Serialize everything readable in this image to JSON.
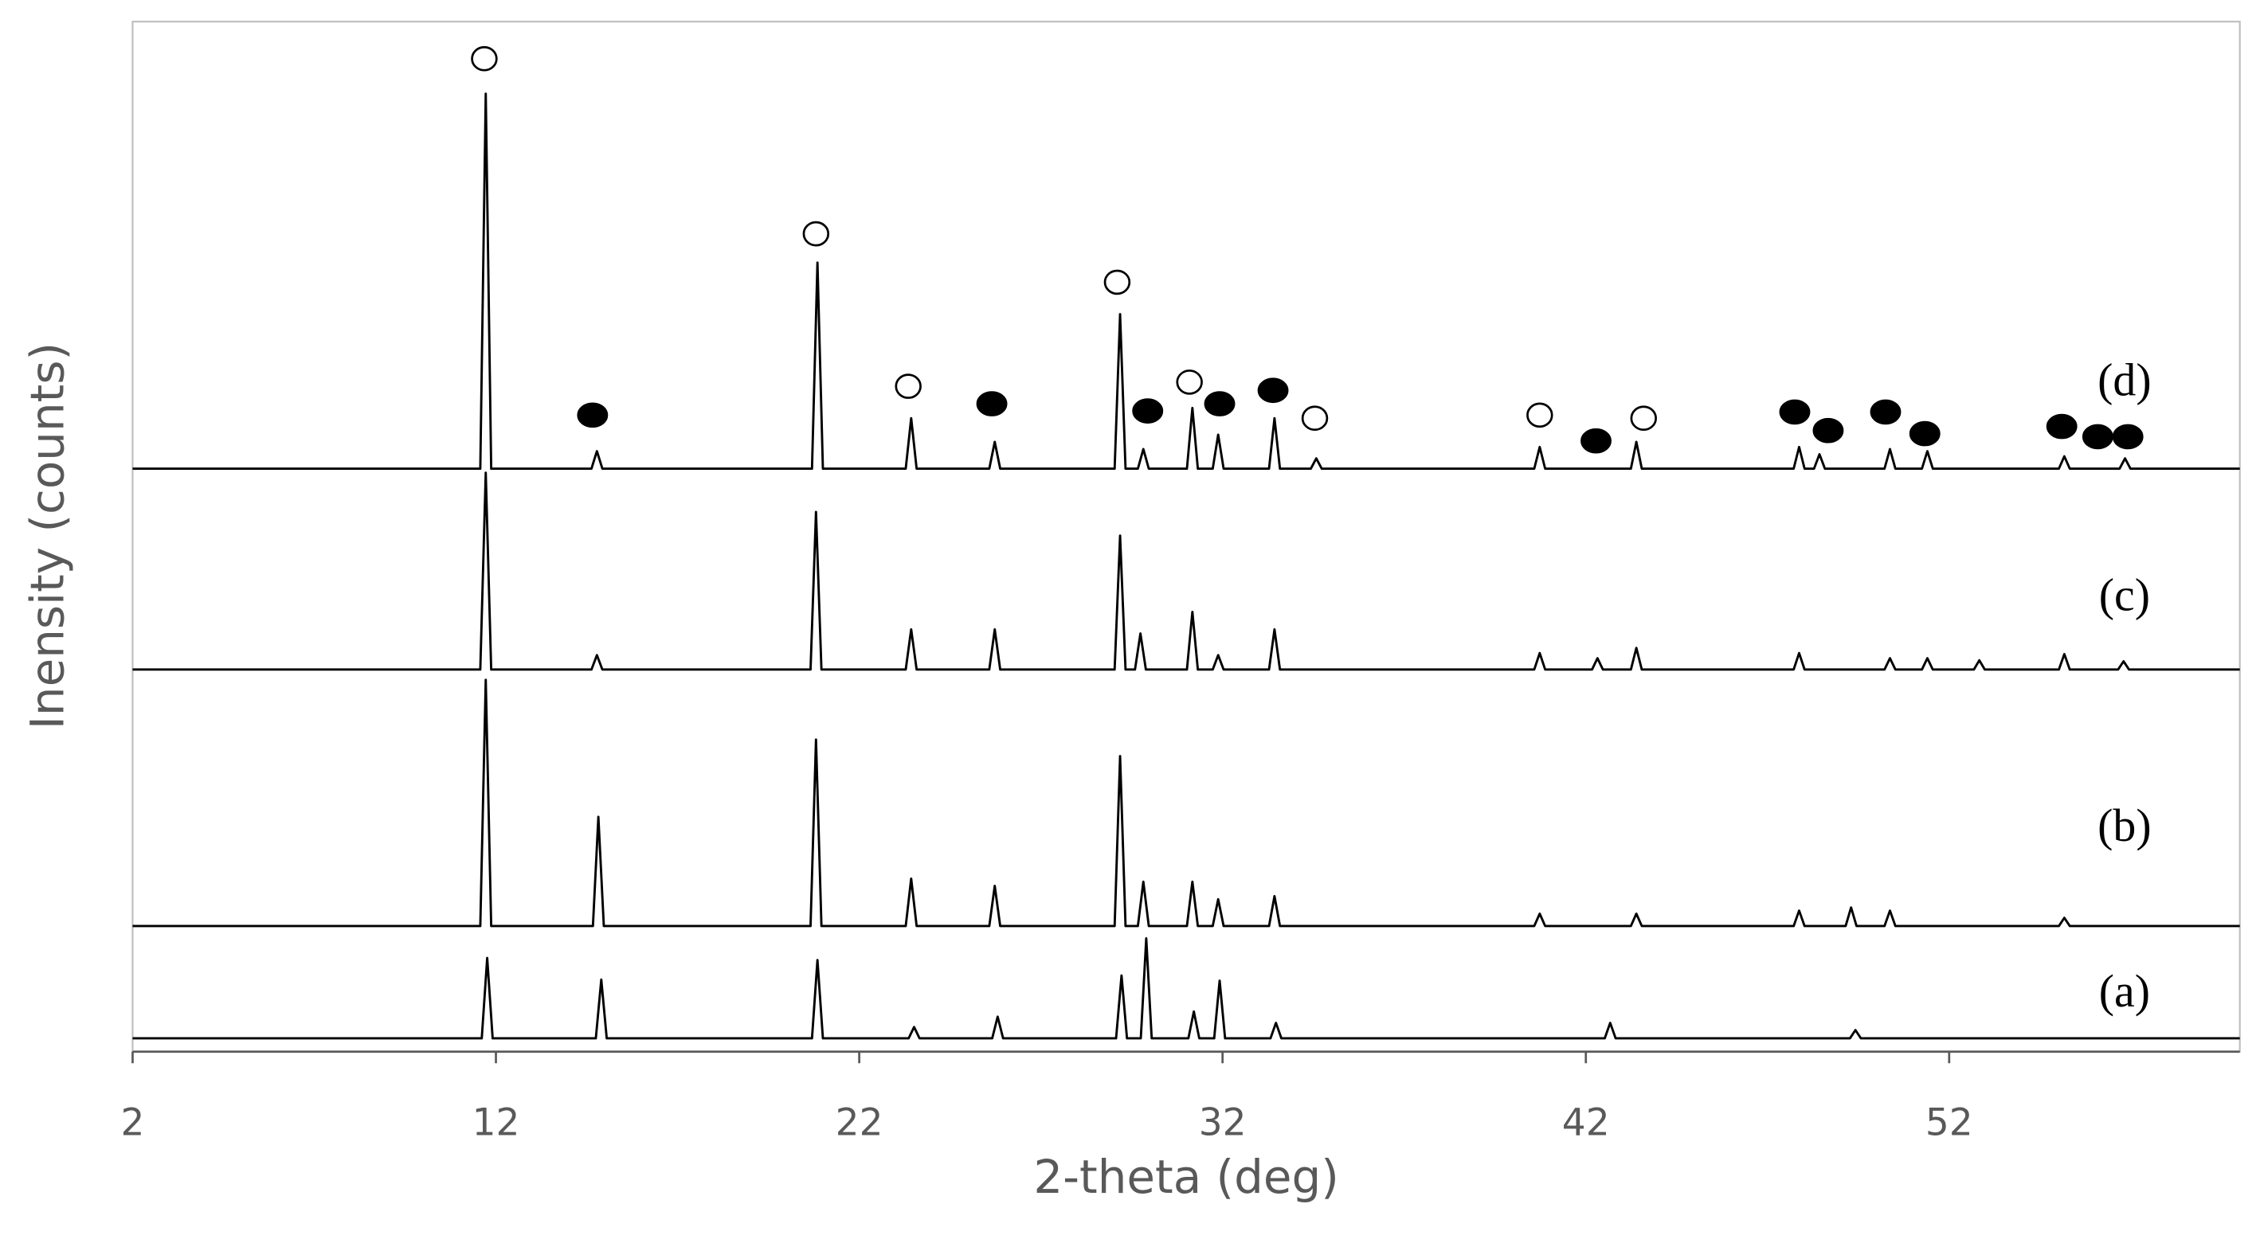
{
  "chart_data": {
    "type": "line",
    "xlabel": "2-theta (deg)",
    "ylabel": "Inensity (counts)",
    "xlim": [
      2,
      60
    ],
    "xticks": [
      2,
      12,
      22,
      32,
      42,
      52
    ],
    "ylim": [
      0,
      100
    ],
    "grid": false,
    "series": [
      {
        "name": "(a)",
        "color": "#000000",
        "x": [
          2,
          11.61,
          11.76,
          11.91,
          14.75,
          14.9,
          15.05,
          20.7,
          20.85,
          21.0,
          23.36,
          23.51,
          23.66,
          25.66,
          25.81,
          25.96,
          29.07,
          29.22,
          29.37,
          29.75,
          29.9,
          30.05,
          31.06,
          31.21,
          31.36,
          31.77,
          31.92,
          32.07,
          33.32,
          33.47,
          33.62,
          42.52,
          42.67,
          42.82,
          49.27,
          49.42,
          49.57,
          60
        ],
        "values": [
          1.3,
          1.3,
          9.1,
          1.3,
          1.3,
          7.0,
          1.3,
          1.3,
          8.9,
          1.3,
          1.3,
          2.4,
          1.3,
          1.3,
          3.4,
          1.3,
          1.3,
          7.4,
          1.3,
          1.3,
          11.0,
          1.3,
          1.3,
          3.9,
          1.3,
          1.3,
          6.9,
          1.3,
          1.3,
          2.8,
          1.3,
          1.3,
          2.8,
          1.3,
          1.3,
          2.1,
          1.3,
          1.3
        ]
      },
      {
        "name": "(b)",
        "color": "#000000",
        "x": [
          2,
          11.57,
          11.72,
          11.87,
          14.67,
          14.82,
          14.97,
          20.66,
          20.81,
          20.96,
          23.28,
          23.43,
          23.58,
          25.58,
          25.73,
          25.88,
          29.03,
          29.18,
          29.33,
          29.67,
          29.82,
          29.97,
          31.02,
          31.17,
          31.32,
          31.73,
          31.88,
          32.03,
          33.28,
          33.43,
          33.58,
          40.58,
          40.73,
          40.88,
          43.24,
          43.39,
          43.54,
          47.72,
          47.87,
          48.02,
          49.15,
          49.3,
          49.45,
          50.22,
          50.37,
          50.52,
          55.02,
          55.17,
          55.32,
          60
        ],
        "values": [
          12.2,
          12.2,
          36.1,
          12.2,
          12.2,
          22.8,
          12.2,
          12.2,
          30.3,
          12.2,
          12.2,
          16.8,
          12.2,
          12.2,
          16.1,
          12.2,
          12.2,
          28.7,
          12.2,
          12.2,
          16.5,
          12.2,
          12.2,
          16.5,
          12.2,
          12.2,
          14.8,
          12.2,
          12.2,
          15.1,
          12.2,
          12.2,
          13.4,
          12.2,
          12.2,
          13.4,
          12.2,
          12.2,
          13.7,
          12.2,
          12.2,
          14.0,
          12.2,
          12.2,
          13.7,
          12.2,
          12.2,
          13.0,
          12.2,
          12.2
        ]
      },
      {
        "name": "(c)",
        "color": "#000000",
        "x": [
          2,
          11.57,
          11.72,
          11.87,
          14.63,
          14.78,
          14.93,
          20.66,
          20.81,
          20.96,
          23.28,
          23.43,
          23.58,
          25.58,
          25.73,
          25.88,
          29.03,
          29.18,
          29.33,
          29.59,
          29.74,
          29.89,
          31.02,
          31.17,
          31.32,
          31.73,
          31.88,
          32.03,
          33.28,
          33.43,
          33.58,
          40.58,
          40.73,
          40.88,
          42.17,
          42.32,
          42.47,
          43.24,
          43.39,
          43.54,
          47.72,
          47.87,
          48.02,
          50.22,
          50.37,
          50.52,
          51.25,
          51.4,
          51.55,
          52.68,
          52.83,
          52.98,
          55.02,
          55.17,
          55.32,
          56.65,
          56.8,
          56.95,
          60
        ],
        "values": [
          37.1,
          37.1,
          56.2,
          37.1,
          37.1,
          38.5,
          37.1,
          37.1,
          52.4,
          37.1,
          37.1,
          41.0,
          37.1,
          37.1,
          41.0,
          37.1,
          37.1,
          50.1,
          37.1,
          37.1,
          40.6,
          37.1,
          37.1,
          42.7,
          37.1,
          37.1,
          38.5,
          37.1,
          37.1,
          41.0,
          37.1,
          37.1,
          38.7,
          37.1,
          37.1,
          38.2,
          37.1,
          37.1,
          39.2,
          37.1,
          37.1,
          38.7,
          37.1,
          37.1,
          38.2,
          37.1,
          37.1,
          38.2,
          37.1,
          37.1,
          38.0,
          37.1,
          37.1,
          38.6,
          37.1,
          37.1,
          37.9,
          37.1,
          37.1
        ]
      },
      {
        "name": "(d)",
        "color": "#000000",
        "x": [
          2,
          11.57,
          11.72,
          11.87,
          14.63,
          14.78,
          14.93,
          20.7,
          20.85,
          21.0,
          23.28,
          23.43,
          23.58,
          25.58,
          25.73,
          25.88,
          29.03,
          29.18,
          29.33,
          29.67,
          29.82,
          29.97,
          31.02,
          31.17,
          31.32,
          31.73,
          31.88,
          32.03,
          33.28,
          33.43,
          33.58,
          34.43,
          34.58,
          34.73,
          40.58,
          40.73,
          40.88,
          43.24,
          43.39,
          43.54,
          47.72,
          47.87,
          48.02,
          48.28,
          48.43,
          48.58,
          50.22,
          50.37,
          50.52,
          51.25,
          51.4,
          51.55,
          55.02,
          55.17,
          55.32,
          56.69,
          56.84,
          56.99,
          60
        ],
        "values": [
          56.6,
          56.6,
          93.0,
          56.6,
          56.6,
          58.3,
          56.6,
          56.6,
          76.6,
          56.6,
          56.6,
          61.5,
          56.6,
          56.6,
          59.2,
          56.6,
          56.6,
          71.6,
          56.6,
          56.6,
          58.5,
          56.6,
          56.6,
          62.5,
          56.6,
          56.6,
          59.9,
          56.6,
          56.6,
          61.5,
          56.6,
          56.6,
          57.6,
          56.6,
          56.6,
          58.7,
          56.6,
          56.6,
          59.2,
          56.6,
          56.6,
          58.7,
          56.6,
          56.6,
          58.0,
          56.6,
          56.6,
          58.5,
          56.6,
          56.6,
          58.3,
          56.6,
          56.6,
          57.8,
          56.6,
          56.6,
          57.6,
          56.6,
          56.6
        ]
      }
    ],
    "markers": [
      {
        "x": 11.68,
        "y": 96.4,
        "filled": false
      },
      {
        "x": 20.81,
        "y": 79.4,
        "filled": false
      },
      {
        "x": 23.35,
        "y": 64.6,
        "filled": false
      },
      {
        "x": 29.1,
        "y": 74.7,
        "filled": false
      },
      {
        "x": 31.09,
        "y": 65.0,
        "filled": false
      },
      {
        "x": 34.54,
        "y": 61.5,
        "filled": false
      },
      {
        "x": 40.73,
        "y": 61.8,
        "filled": false
      },
      {
        "x": 43.59,
        "y": 61.5,
        "filled": false
      },
      {
        "x": 14.66,
        "y": 61.8,
        "filled": true
      },
      {
        "x": 25.65,
        "y": 62.9,
        "filled": true
      },
      {
        "x": 29.94,
        "y": 62.2,
        "filled": true
      },
      {
        "x": 31.92,
        "y": 62.9,
        "filled": true
      },
      {
        "x": 33.39,
        "y": 64.2,
        "filled": true
      },
      {
        "x": 42.28,
        "y": 59.3,
        "filled": true
      },
      {
        "x": 47.75,
        "y": 62.1,
        "filled": true
      },
      {
        "x": 48.67,
        "y": 60.3,
        "filled": true
      },
      {
        "x": 50.25,
        "y": 62.1,
        "filled": true
      },
      {
        "x": 51.33,
        "y": 60.0,
        "filled": true
      },
      {
        "x": 55.1,
        "y": 60.7,
        "filled": true
      },
      {
        "x": 56.09,
        "y": 59.7,
        "filled": true
      },
      {
        "x": 56.92,
        "y": 59.7,
        "filled": true
      }
    ]
  }
}
